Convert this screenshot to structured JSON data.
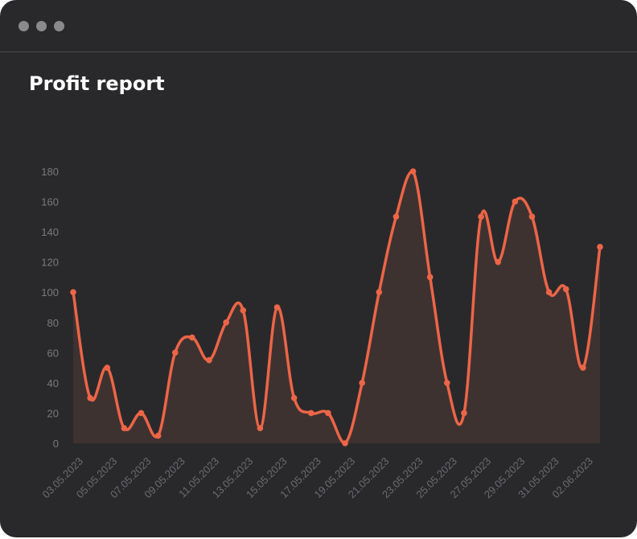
{
  "window": {
    "title": "Profit report"
  },
  "colors": {
    "background": "#29292b",
    "line": "#ec6547",
    "area": "#3e3231",
    "tick_text": "#7a7a7d"
  },
  "chart_data": {
    "type": "area",
    "title": "Profit report",
    "xlabel": "",
    "ylabel": "",
    "ylim": [
      0,
      180
    ],
    "yticks": [
      0,
      20,
      40,
      60,
      80,
      100,
      120,
      140,
      160,
      180
    ],
    "grid": false,
    "legend": "none",
    "x": [
      "03.05.2023",
      "04.05.2023",
      "05.05.2023",
      "06.05.2023",
      "07.05.2023",
      "08.05.2023",
      "09.05.2023",
      "10.05.2023",
      "11.05.2023",
      "12.05.2023",
      "13.05.2023",
      "14.05.2023",
      "15.05.2023",
      "16.05.2023",
      "17.05.2023",
      "18.05.2023",
      "19.05.2023",
      "20.05.2023",
      "21.05.2023",
      "22.05.2023",
      "23.05.2023",
      "24.05.2023",
      "25.05.2023",
      "26.05.2023",
      "27.05.2023",
      "28.05.2023",
      "29.05.2023",
      "30.05.2023",
      "31.05.2023",
      "01.06.2023",
      "02.06.2023",
      "03.06.2023"
    ],
    "xtick_labels": [
      "03.05.2023",
      "05.05.2023",
      "07.05.2023",
      "09.05.2023",
      "11.05.2023",
      "13.05.2023",
      "15.05.2023",
      "17.05.2023",
      "19.05.2023",
      "21.05.2023",
      "23.05.2023",
      "25.05.2023",
      "27.05.2023",
      "29.05.2023",
      "31.05.2023",
      "02.06.2023"
    ],
    "series": [
      {
        "values": [
          100,
          30,
          50,
          10,
          20,
          5,
          60,
          70,
          55,
          80,
          88,
          10,
          90,
          30,
          20,
          20,
          0,
          40,
          100,
          150,
          180,
          110,
          40,
          20,
          150,
          120,
          160,
          150,
          100,
          102,
          50,
          130
        ]
      }
    ]
  }
}
